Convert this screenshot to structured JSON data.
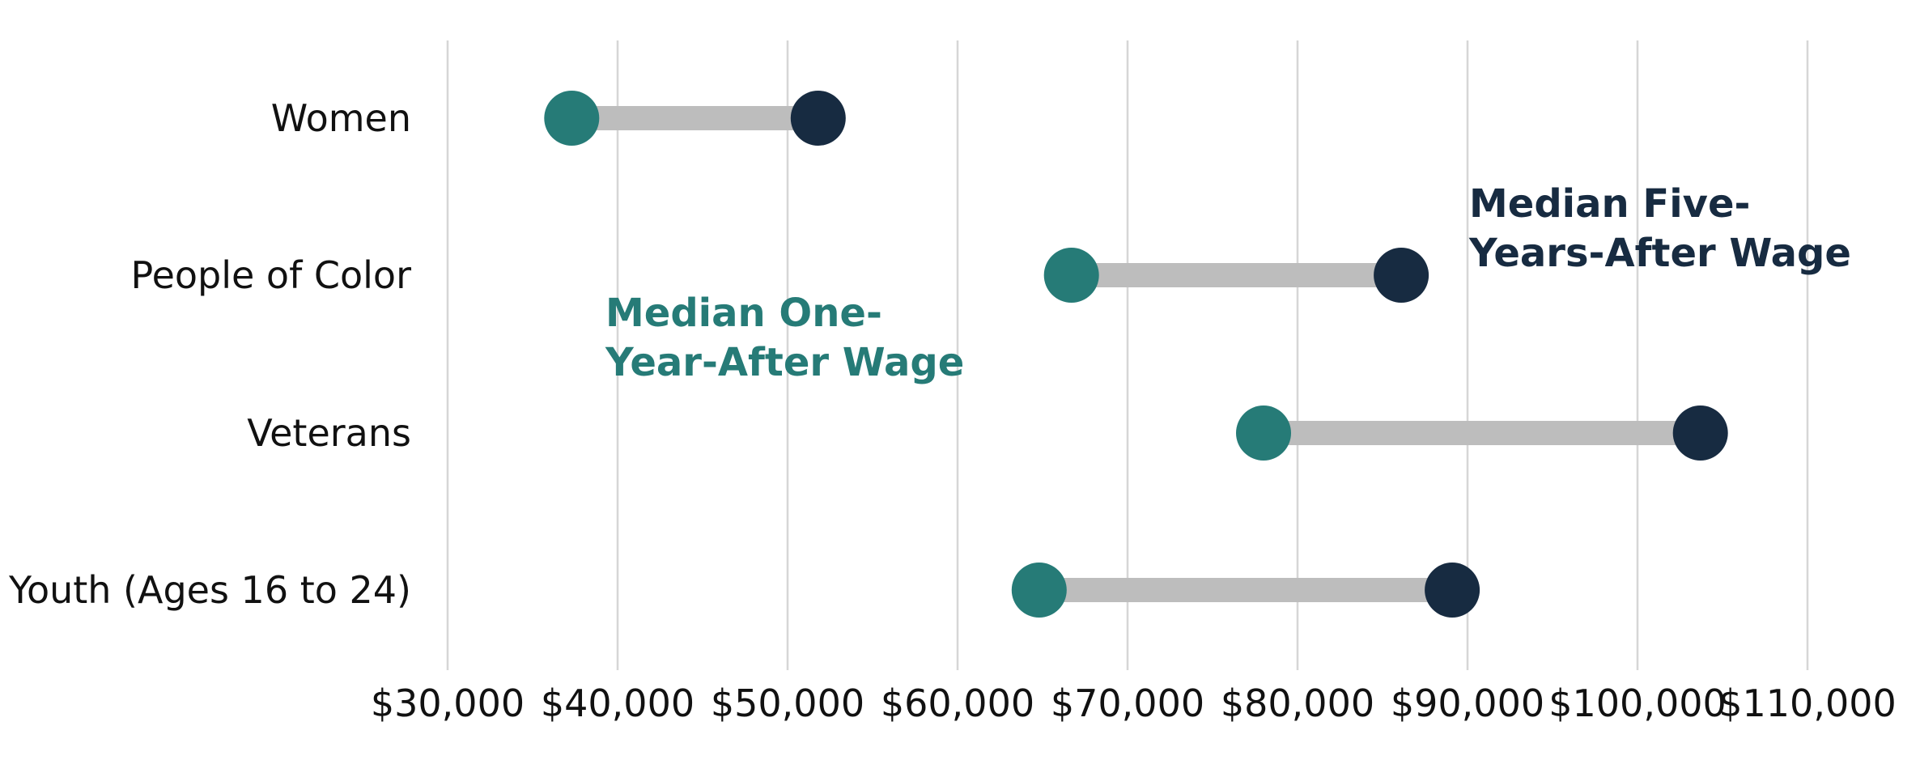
{
  "chart_data": {
    "type": "dumbbell",
    "categories": [
      "Women",
      "People of Color",
      "Veterans",
      "Youth (Ages 16 to 24)"
    ],
    "series": [
      {
        "name": "Median One-Year-After Wage",
        "values": [
          37300,
          66700,
          78000,
          64800
        ],
        "color": "#267b77"
      },
      {
        "name": "Median Five-Years-After Wage",
        "values": [
          51800,
          86100,
          103700,
          89100
        ],
        "color": "#172b41"
      }
    ],
    "connector_color": "#bdbdbd",
    "grid_color": "#d6d6d6",
    "xlim": [
      30000,
      110000
    ],
    "x_ticks": [
      30000,
      40000,
      50000,
      60000,
      70000,
      80000,
      90000,
      100000,
      110000
    ],
    "x_tick_labels": [
      "$30,000",
      "$40,000",
      "$50,000",
      "$60,000",
      "$70,000",
      "$80,000",
      "$90,000",
      "$100,000",
      "$110,000"
    ],
    "annotations": [
      {
        "lines": [
          "Median One-",
          "Year-After Wage"
        ],
        "color": "#267b77"
      },
      {
        "lines": [
          "Median Five-",
          "Years-After Wage"
        ],
        "color": "#172b41"
      }
    ],
    "xlabel": "",
    "ylabel": "",
    "grid": true
  }
}
